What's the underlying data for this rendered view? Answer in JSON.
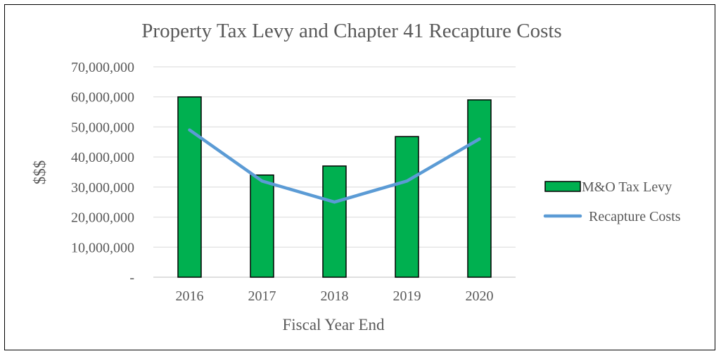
{
  "chart_data": {
    "type": "bar",
    "title": "Property Tax Levy and Chapter 41 Recapture Costs",
    "xlabel": "Fiscal Year End",
    "ylabel": "$$$",
    "categories": [
      "2016",
      "2017",
      "2018",
      "2019",
      "2020"
    ],
    "ylim": [
      0,
      70000000
    ],
    "yticks": [
      0,
      10000000,
      20000000,
      30000000,
      40000000,
      50000000,
      60000000,
      70000000
    ],
    "ytick_labels": [
      "-",
      "10,000,000",
      "20,000,000",
      "30,000,000",
      "40,000,000",
      "50,000,000",
      "60,000,000",
      "70,000,000"
    ],
    "grid": true,
    "legend_position": "right",
    "series": [
      {
        "name": "M&O Tax Levy",
        "type": "bar",
        "color": "#00B050",
        "values": [
          60000000,
          34000000,
          37000000,
          46800000,
          59000000
        ]
      },
      {
        "name": "Recapture Costs",
        "type": "line",
        "color": "#5B9BD5",
        "values": [
          49000000,
          32000000,
          25000000,
          32000000,
          46000000
        ]
      }
    ]
  }
}
